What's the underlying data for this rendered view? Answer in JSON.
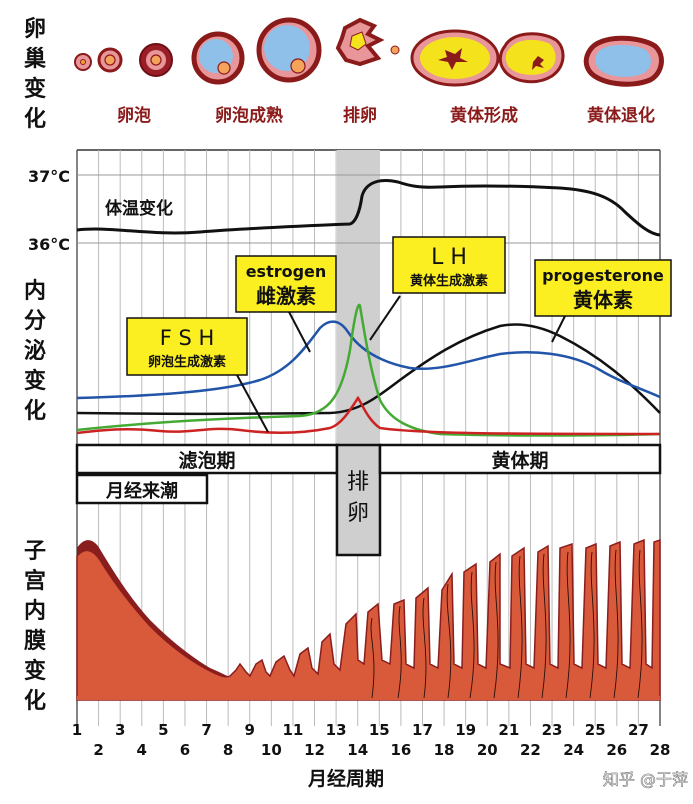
{
  "section_labels": {
    "ovary": [
      "卵",
      "巢",
      "变",
      "化"
    ],
    "hormone": [
      "内",
      "分",
      "泌",
      "变",
      "化"
    ],
    "endometrium": [
      "子",
      "宫",
      "内",
      "膜",
      "变",
      "化"
    ]
  },
  "ovary_stages": [
    "卵泡",
    "卵泡成熟",
    "排卵",
    "黄体形成",
    "黄体退化"
  ],
  "temperature": {
    "label": "体温变化",
    "y_ticks": [
      "37°C",
      "36°C"
    ]
  },
  "hormones": {
    "fsh": {
      "name": "F S H",
      "cn": "卵泡生成激素",
      "color": "#cc2222"
    },
    "estrogen": {
      "name": "estrogen",
      "cn": "雌激素",
      "color": "#2255aa"
    },
    "lh": {
      "name": "L H",
      "cn": "黄体生成激素",
      "color": "#44aa33"
    },
    "progesterone": {
      "name": "progesterone",
      "cn": "黄体素",
      "color": "#111111"
    }
  },
  "phases": {
    "follicular": "滤泡期",
    "menstruation": "月经来潮",
    "ovulation": [
      "排",
      "卵"
    ],
    "luteal": "黄体期"
  },
  "x_axis": {
    "days": [
      "1",
      "2",
      "3",
      "4",
      "5",
      "6",
      "7",
      "8",
      "9",
      "10",
      "11",
      "12",
      "13",
      "14",
      "15",
      "16",
      "17",
      "18",
      "19",
      "20",
      "21",
      "22",
      "23",
      "24",
      "25",
      "26",
      "27",
      "28"
    ],
    "title": "月经周期"
  },
  "watermark": "知乎 @于萍",
  "colors": {
    "ovary_red": "#8b1a1a",
    "ovary_pink": "#e8969a",
    "follicle_blue": "#8fc0ea",
    "corpus_yellow": "#f4e21c",
    "endometrium": "#d85a3a",
    "endometrium_dark": "#8a1d1d",
    "label_box_yellow": "#fbee21",
    "ovulation_band": "#cfcfcf"
  }
}
